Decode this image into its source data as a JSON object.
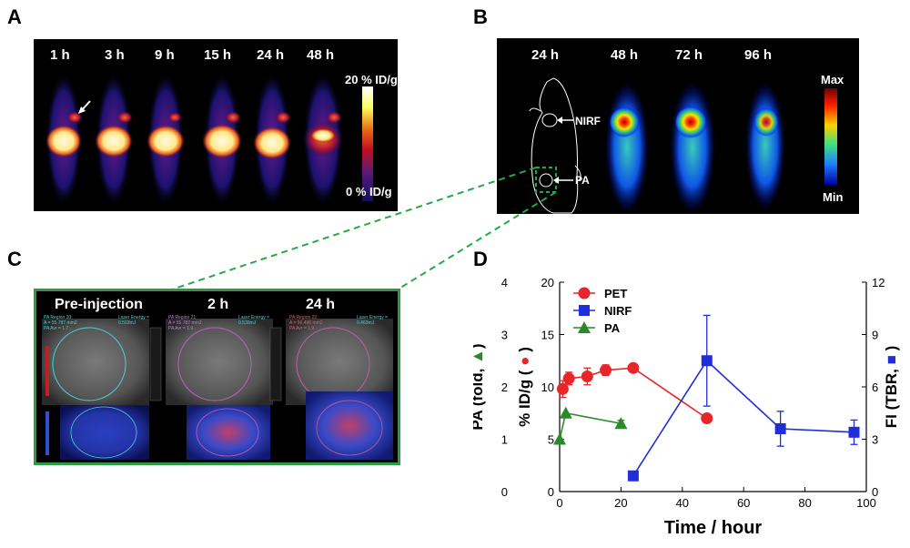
{
  "panel_labels": {
    "a": "A",
    "b": "B",
    "c": "C",
    "d": "D"
  },
  "panel_a": {
    "timepoints": [
      "1 h",
      "3 h",
      "9 h",
      "15 h",
      "24 h",
      "48 h"
    ],
    "scale_max": "20 % ID/g",
    "scale_min": "0 % ID/g"
  },
  "panel_b": {
    "timepoints": [
      "24 h",
      "48 h",
      "72 h",
      "96 h"
    ],
    "nirf_label": "NIRF",
    "pa_label": "PA",
    "scale_max": "Max",
    "scale_min": "Min"
  },
  "panel_c": {
    "titles": [
      "Pre-injection",
      "2 h",
      "24 h"
    ],
    "roi_texts": [
      {
        "region": "PA Region 20:",
        "area": "A = 55.787 mm2",
        "avg": "PA Avr = 1.7..",
        "laser": "Laser Energy =",
        "laser_val": "0.503mJ"
      },
      {
        "region": "PA Region 21:",
        "area": "A = 55.787 mm2",
        "avg": "PA Avr = 1.9..",
        "laser": "Laser Energy =",
        "laser_val": "0.530mJ"
      },
      {
        "region": "PA Region 22:",
        "area": "A = 56.496 mm2",
        "avg": "PA Avr = 1.9..",
        "laser": "Laser Energy =",
        "laser_val": "0.463mJ"
      }
    ]
  },
  "chart_data": {
    "type": "line",
    "xlabel": "Time / hour",
    "xlim": [
      0,
      100
    ],
    "xticks": [
      "0",
      "20",
      "40",
      "60",
      "80",
      "100"
    ],
    "y_axes": {
      "pa": {
        "label": "PA (fold,",
        "lim": [
          0,
          4
        ],
        "ticks": [
          "0",
          "1",
          "2",
          "3",
          "4"
        ]
      },
      "pet": {
        "label": "% ID/g (",
        "lim": [
          0,
          20
        ],
        "ticks": [
          "0",
          "5",
          "10",
          "15",
          "20"
        ]
      },
      "fi": {
        "label": "FI (TBR,",
        "lim": [
          0,
          12
        ],
        "ticks": [
          "0",
          "3",
          "6",
          "9",
          "12"
        ]
      }
    },
    "series": [
      {
        "name": "PET",
        "axis": "pet",
        "color": "#e8262a",
        "marker": "circle",
        "x": [
          1,
          3,
          9,
          15,
          24,
          48
        ],
        "y": [
          9.8,
          10.8,
          11.0,
          11.6,
          11.8,
          7.0
        ],
        "err": [
          0.8,
          0.6,
          0.8,
          0.5,
          0.0,
          0.0
        ]
      },
      {
        "name": "NIRF",
        "axis": "fi",
        "color": "#1f2ed8",
        "marker": "square",
        "x": [
          24,
          48,
          72,
          96
        ],
        "y": [
          0.9,
          7.5,
          3.6,
          3.4
        ],
        "err": [
          0.0,
          2.6,
          1.0,
          0.7
        ]
      },
      {
        "name": "PA",
        "axis": "pa",
        "color": "#2a8a2a",
        "marker": "triangle",
        "x": [
          0,
          2,
          20
        ],
        "y": [
          1.0,
          1.5,
          1.3
        ],
        "err": [
          0.0,
          0.0,
          0.06
        ]
      }
    ]
  }
}
